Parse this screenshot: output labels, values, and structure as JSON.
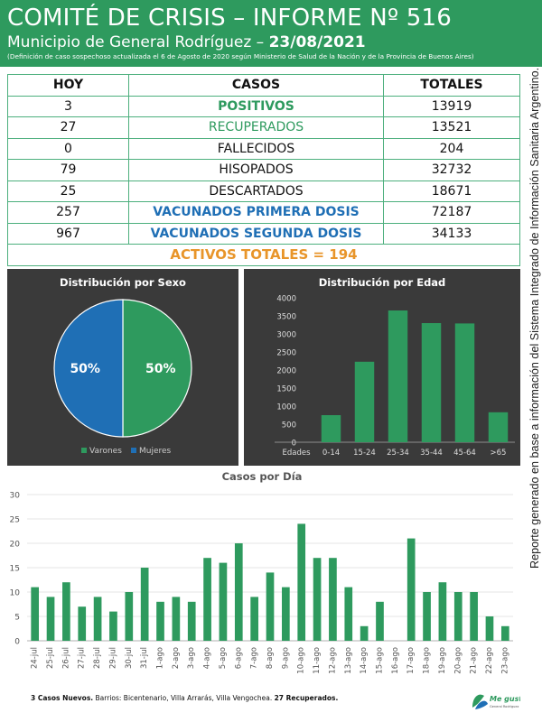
{
  "header": {
    "title": "COMITÉ DE CRISIS – INFORME Nº 516",
    "subtitle_prefix": "Municipio de General Rodríguez – ",
    "subtitle_date": "23/08/2021",
    "note": "(Definición de caso sospechoso actualizada el 6 de Agosto de 2020 según Ministerio de Salud de la Nación y de la Provincia de Buenos Aires)"
  },
  "side_note": "Reporte generado en base a información del Sistema Integrado de Información Sanitaria Argentino.",
  "table": {
    "headers": [
      "HOY",
      "CASOS",
      "TOTALES"
    ],
    "rows": [
      {
        "hoy": "3",
        "label": "POSITIVOS",
        "total": "13919",
        "style": "green bold"
      },
      {
        "hoy": "27",
        "label": "RECUPERADOS",
        "total": "13521",
        "style": "green"
      },
      {
        "hoy": "0",
        "label": "FALLECIDOS",
        "total": "204",
        "style": ""
      },
      {
        "hoy": "79",
        "label": "HISOPADOS",
        "total": "32732",
        "style": ""
      },
      {
        "hoy": "25",
        "label": "DESCARTADOS",
        "total": "18671",
        "style": ""
      },
      {
        "hoy": "257",
        "label": "VACUNADOS PRIMERA DOSIS",
        "total": "72187",
        "style": "blue"
      },
      {
        "hoy": "967",
        "label": "VACUNADOS SEGUNDA DOSIS",
        "total": "34133",
        "style": "blue"
      }
    ],
    "footer_row": "ACTIVOS TOTALES = 194"
  },
  "chart_data": [
    {
      "type": "pie",
      "title": "Distribución  por Sexo",
      "categories": [
        "Varones",
        "Mujeres"
      ],
      "values": [
        50,
        50
      ],
      "labels": [
        "50%",
        "50%"
      ],
      "colors": [
        "#2e9a5e",
        "#1f6fb5"
      ],
      "legend": "bottom"
    },
    {
      "type": "bar",
      "title": "Distribución  por Edad",
      "categories": [
        "0-14",
        "15-24",
        "25-34",
        "35-44",
        "45-64",
        ">65"
      ],
      "axis_category_label": "Edades",
      "values": [
        750,
        2230,
        3650,
        3300,
        3290,
        830
      ],
      "ylim": [
        0,
        4000
      ],
      "yticks": [
        0,
        500,
        1000,
        1500,
        2000,
        2500,
        3000,
        3500,
        4000
      ],
      "grid": false,
      "color": "#2e9a5e"
    },
    {
      "type": "bar",
      "title": "Casos por Día",
      "categories": [
        "24-jul",
        "25-jul",
        "26-jul",
        "27-jul",
        "28-jul",
        "29-jul",
        "30-jul",
        "31-jul",
        "1-ago",
        "2-ago",
        "3-ago",
        "4-ago",
        "5-ago",
        "6-ago",
        "7-ago",
        "8-ago",
        "9-ago",
        "10-ago",
        "11-ago",
        "12-ago",
        "13-ago",
        "14-ago",
        "15-ago",
        "16-ago",
        "17-ago",
        "18-ago",
        "19-ago",
        "20-ago",
        "21-ago",
        "22-ago",
        "23-ago"
      ],
      "values": [
        11,
        9,
        12,
        7,
        9,
        6,
        10,
        15,
        8,
        9,
        8,
        17,
        16,
        20,
        9,
        14,
        11,
        24,
        17,
        17,
        11,
        3,
        8,
        0,
        21,
        10,
        12,
        10,
        10,
        5,
        3
      ],
      "ylim": [
        0,
        30
      ],
      "yticks": [
        0,
        5,
        10,
        15,
        20,
        25,
        30
      ],
      "grid": true,
      "color": "#2e9a5e"
    }
  ],
  "footer": {
    "bold1": "3 Casos Nuevos.",
    "text": " Barrios: Bicentenario, Villa Arrarás, Villa Vengochea. ",
    "bold2": "27 Recuperados."
  },
  "logo": {
    "text": "Me gusta",
    "subtext": "General Rodríguez",
    "colors": [
      "#2e9a5e",
      "#1f6fb5"
    ]
  }
}
